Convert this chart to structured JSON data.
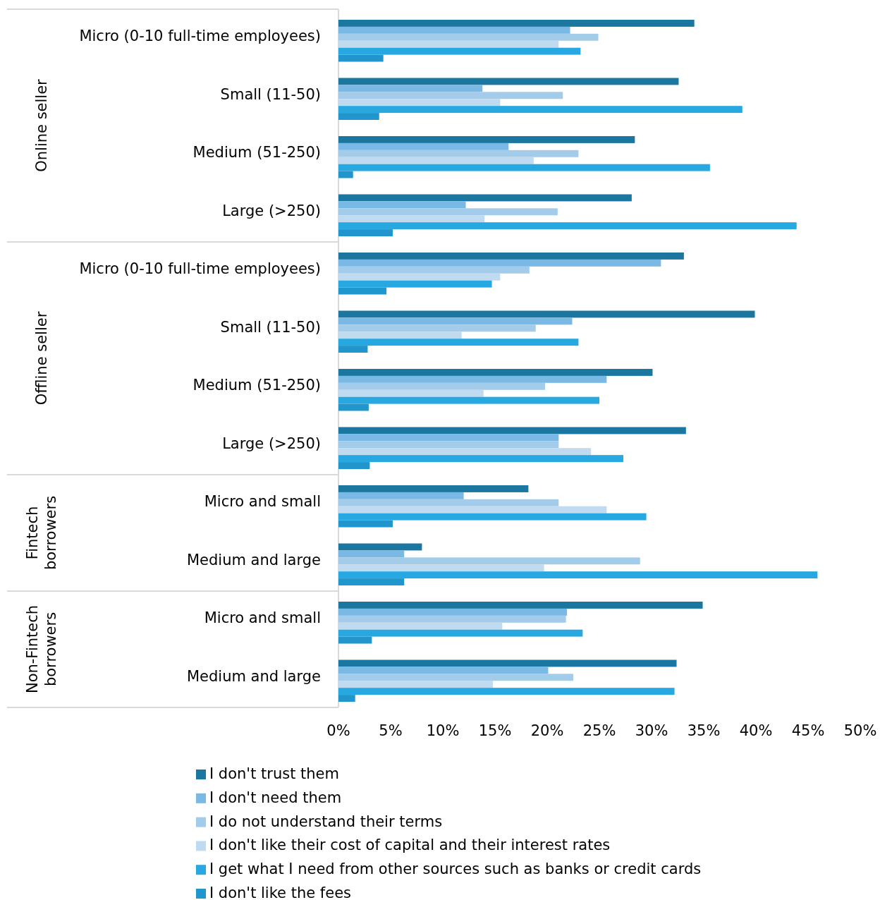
{
  "chart_data": {
    "type": "bar",
    "orientation": "horizontal",
    "categories": [
      "Micro (0-10 full-time employees)",
      "Small (11-50)",
      "Medium (51-250)",
      "Large (>250)",
      "Micro (0-10 full-time employees)",
      "Small (11-50)",
      "Medium (51-250)",
      "Large (>250)",
      "Micro and small",
      "Medium and large",
      "Micro and small",
      "Medium and large"
    ],
    "annotations": [
      "Online seller",
      "Offline seller",
      "Fintech borrowers",
      "Non-Fintech borrowers"
    ],
    "series": [
      {
        "name": "I don't trust them",
        "color": "#1b77a0",
        "values": [
          34.1,
          32.6,
          28.4,
          28.1,
          33.1,
          39.9,
          30.1,
          33.3,
          18.2,
          8.0,
          34.9,
          32.4
        ]
      },
      {
        "name": "I don't need them",
        "color": "#7ab9e5",
        "values": [
          22.2,
          13.8,
          16.3,
          12.2,
          30.9,
          22.4,
          25.7,
          21.1,
          12.0,
          6.3,
          21.9,
          20.1
        ]
      },
      {
        "name": "I do not understand their terms",
        "color": "#a3cbea",
        "values": [
          24.9,
          21.5,
          23.0,
          21.0,
          18.3,
          18.9,
          19.8,
          21.1,
          21.1,
          28.9,
          21.8,
          22.5
        ]
      },
      {
        "name": "I don't like their cost of capital and their interest rates",
        "color": "#c0daf0",
        "values": [
          21.1,
          15.5,
          18.7,
          14.0,
          15.5,
          11.8,
          13.9,
          24.2,
          25.7,
          19.7,
          15.7,
          14.8
        ]
      },
      {
        "name": "I get what I need from other sources such as banks or credit cards",
        "color": "#28a8e0",
        "values": [
          23.2,
          38.7,
          35.6,
          43.9,
          14.7,
          23.0,
          25.0,
          27.3,
          29.5,
          45.9,
          23.4,
          32.2
        ]
      },
      {
        "name": "I don't like the fees",
        "color": "#2196cc",
        "values": [
          4.3,
          3.9,
          1.4,
          5.2,
          4.6,
          2.8,
          2.9,
          3.0,
          5.2,
          6.3,
          3.2,
          1.6
        ]
      }
    ],
    "xlim": [
      0,
      50
    ],
    "xticks": [
      {
        "value": 0,
        "label": "0%"
      },
      {
        "value": 5,
        "label": "5%"
      },
      {
        "value": 10,
        "label": "10%"
      },
      {
        "value": 15,
        "label": "15%"
      },
      {
        "value": 20,
        "label": "20%"
      },
      {
        "value": 25,
        "label": "25%"
      },
      {
        "value": 30,
        "label": "30%"
      },
      {
        "value": 35,
        "label": "35%"
      },
      {
        "value": 40,
        "label": "40%"
      },
      {
        "value": 45,
        "label": "45%"
      },
      {
        "value": 50,
        "label": "50%"
      }
    ],
    "grid": false,
    "legend": "bottom"
  }
}
